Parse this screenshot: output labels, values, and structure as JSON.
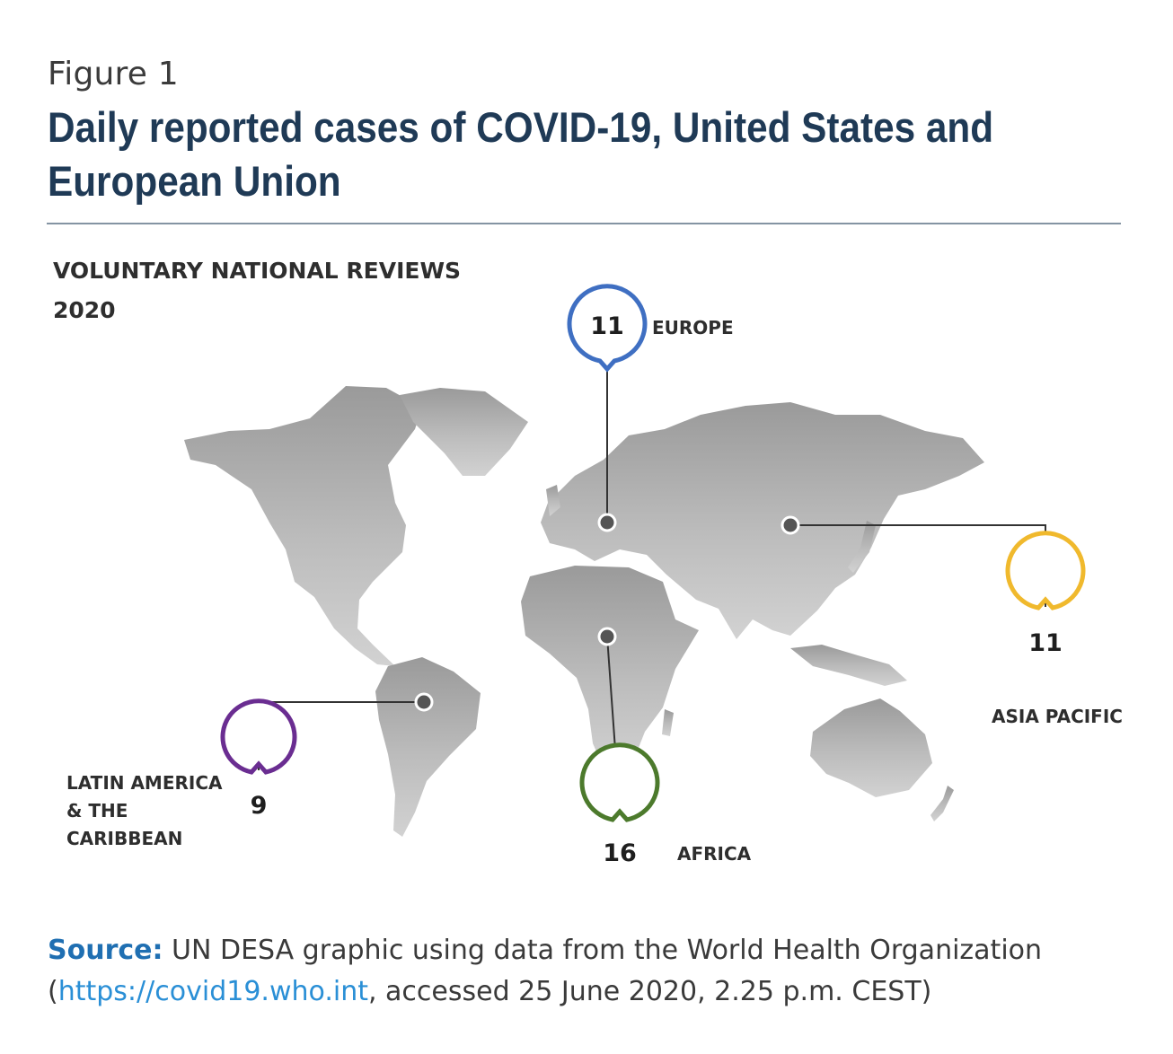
{
  "figure": {
    "label": "Figure 1",
    "title": "Daily reported cases of COVID-19, United States and European Union"
  },
  "map": {
    "heading_line1": "VOLUNTARY NATIONAL REVIEWS",
    "heading_line2": "2020",
    "regions": [
      {
        "key": "europe",
        "name": "EUROPE",
        "count": "11",
        "color": "#3f6fc2"
      },
      {
        "key": "asia",
        "name": "ASIA PACIFIC",
        "count": "11",
        "color": "#f0b92d"
      },
      {
        "key": "latam",
        "name_line1": "LATIN AMERICA",
        "name_line2": "& THE",
        "name_line3": "CARIBBEAN",
        "count": "9",
        "color": "#6a2d91"
      },
      {
        "key": "africa",
        "name": "AFRICA",
        "count": "16",
        "color": "#4c7a2c"
      }
    ],
    "land_color": "#a6a6a6"
  },
  "source": {
    "label": "Source:",
    "text1": " UN DESA graphic using data from the World Health Organization (",
    "link": "https://covid19.who.int",
    "text2": ", accessed 25 June 2020, 2.25 p.m. CEST)"
  }
}
